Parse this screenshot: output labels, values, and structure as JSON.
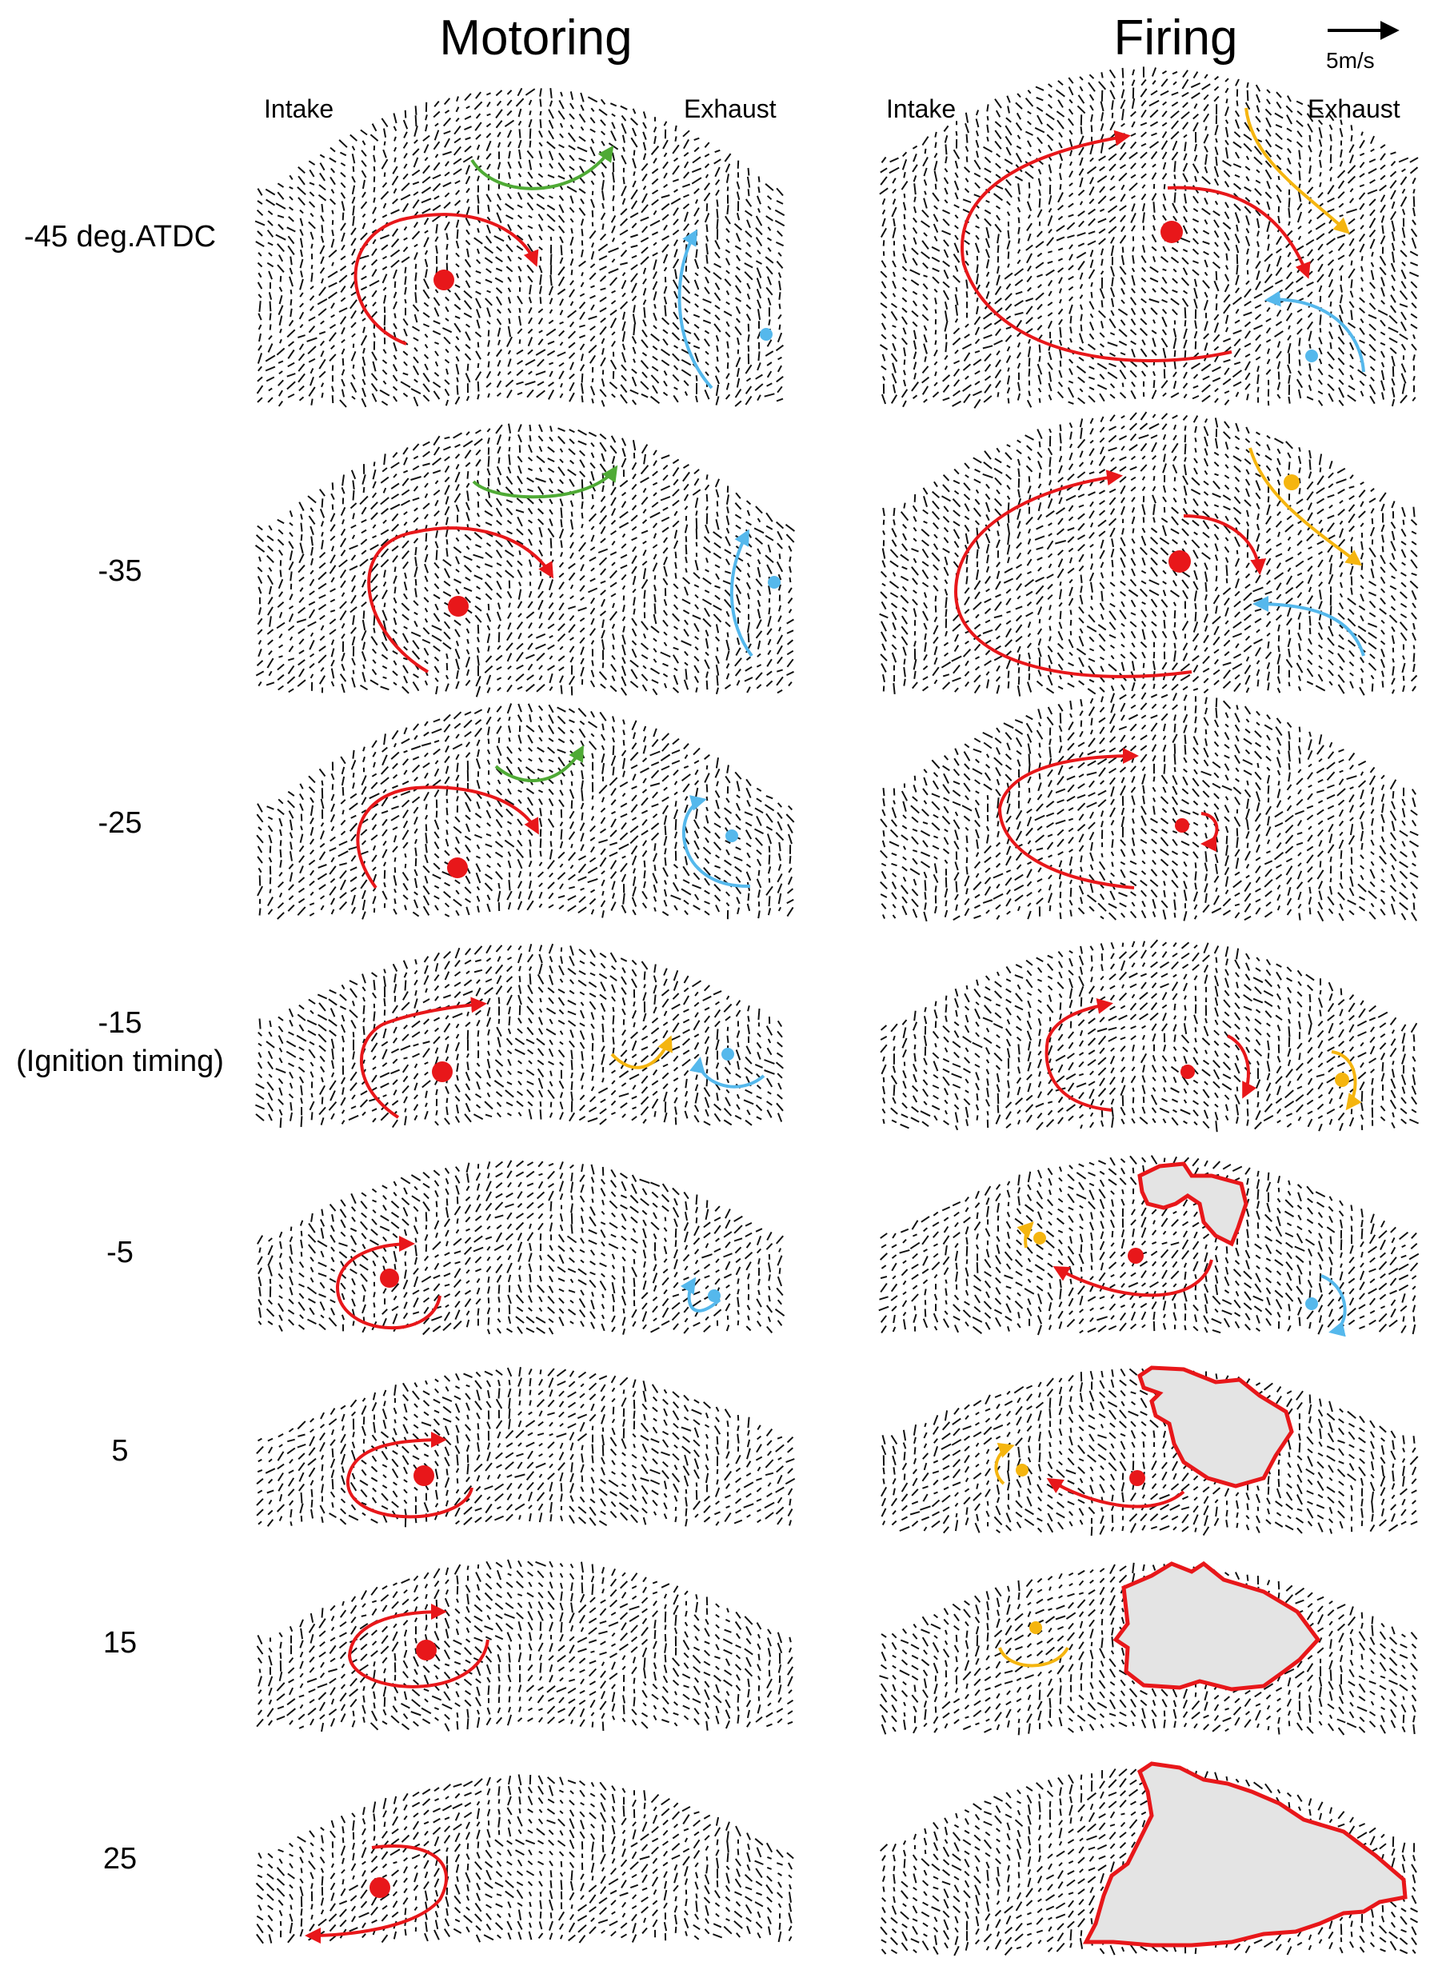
{
  "columns": {
    "motoring": "Motoring",
    "firing": "Firing"
  },
  "side_labels": {
    "intake": "Intake",
    "exhaust": "Exhaust"
  },
  "scale": {
    "label": "5m/s"
  },
  "rows": [
    {
      "label": "-45 deg.ATDC",
      "sublabel": ""
    },
    {
      "label": "-35",
      "sublabel": ""
    },
    {
      "label": "-25",
      "sublabel": ""
    },
    {
      "label": "-15",
      "sublabel": "(Ignition timing)"
    },
    {
      "label": "-5",
      "sublabel": ""
    },
    {
      "label": "5",
      "sublabel": ""
    },
    {
      "label": "15",
      "sublabel": ""
    },
    {
      "label": "25",
      "sublabel": ""
    }
  ],
  "colors": {
    "vectors": "#111111",
    "main_vortex": "#e8171a",
    "upper_vortex": "#4faa35",
    "exhaust_vortex": "#55b8ec",
    "secondary_vortex": "#f5b50f",
    "flame_fill": "#e4e4e4",
    "flame_edge": "#e8171a"
  }
}
